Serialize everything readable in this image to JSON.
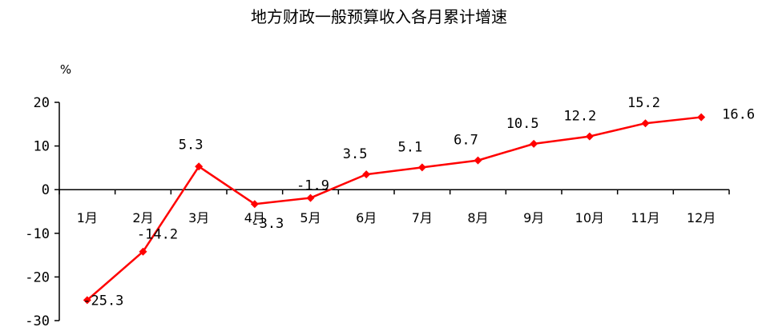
{
  "chart_data": {
    "type": "line",
    "title": "地方财政一般预算收入各月累计增速",
    "ylabel": "%",
    "xlabel": "",
    "categories": [
      "1月",
      "2月",
      "3月",
      "4月",
      "5月",
      "6月",
      "7月",
      "8月",
      "9月",
      "10月",
      "11月",
      "12月"
    ],
    "series": [
      {
        "values": [
          -25.3,
          -14.2,
          5.3,
          -3.3,
          -1.9,
          3.5,
          5.1,
          6.7,
          10.5,
          12.2,
          15.2,
          16.6
        ],
        "labels": [
          "-25.3",
          "-14.2",
          "5.3",
          "-3.3",
          "-1.9",
          "3.5",
          "5.1",
          "6.7",
          "10.5",
          "12.2",
          "15.2",
          "16.6"
        ],
        "color": "#ff0000"
      }
    ],
    "ylim": [
      -30,
      20
    ],
    "yticks": [
      "20",
      "10",
      "0",
      "-10",
      "-20",
      "-30"
    ],
    "grid": false,
    "legend": "none"
  }
}
